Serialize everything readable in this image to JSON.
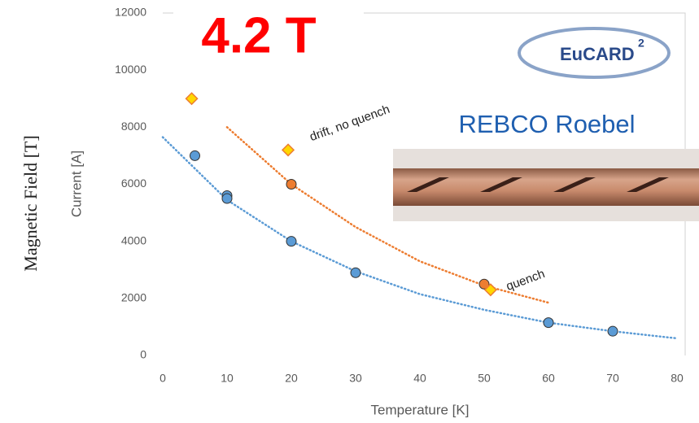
{
  "chart_data": {
    "type": "scatter",
    "title": "4.2 T",
    "outer_axis_label": "Magnetic Field [T]",
    "y_label": "Current [A]",
    "x_label": "Temperature [K]",
    "xlim": [
      0,
      80
    ],
    "xticks": [
      0,
      10,
      20,
      30,
      40,
      50,
      60,
      70,
      80
    ],
    "ylim": [
      0,
      12000
    ],
    "yticks": [
      0,
      2000,
      4000,
      6000,
      8000,
      10000,
      12000
    ],
    "series": [
      {
        "color": "#5b9bd5",
        "marker": "circle",
        "x": [
          5,
          10,
          10,
          20,
          30,
          60,
          70
        ],
        "values": [
          7000,
          5600,
          5500,
          4000,
          2900,
          1150,
          850
        ]
      },
      {
        "color": "#ed7d31",
        "marker": "circle",
        "x": [
          20,
          50
        ],
        "values": [
          6000,
          2500
        ]
      },
      {
        "color": "#ffd700",
        "marker": "diamond",
        "x": [
          4.5,
          19.5,
          51
        ],
        "values": [
          9000,
          7200,
          2300
        ]
      }
    ],
    "trendlines": [
      {
        "color": "#5b9bd5",
        "x": [
          0,
          10,
          20,
          30,
          40,
          50,
          60,
          70,
          80
        ],
        "values": [
          7650,
          5450,
          4000,
          2950,
          2150,
          1600,
          1150,
          850,
          600
        ]
      },
      {
        "color": "#ed7d31",
        "x": [
          10,
          20,
          30,
          40,
          50,
          60
        ],
        "values": [
          8000,
          6000,
          4500,
          3300,
          2450,
          1850
        ]
      }
    ],
    "annotations": [
      "drift, no quench",
      "quench"
    ],
    "logo": {
      "text": "EuCARD",
      "superscript": "2"
    },
    "photo_caption": "REBCO Roebel"
  }
}
